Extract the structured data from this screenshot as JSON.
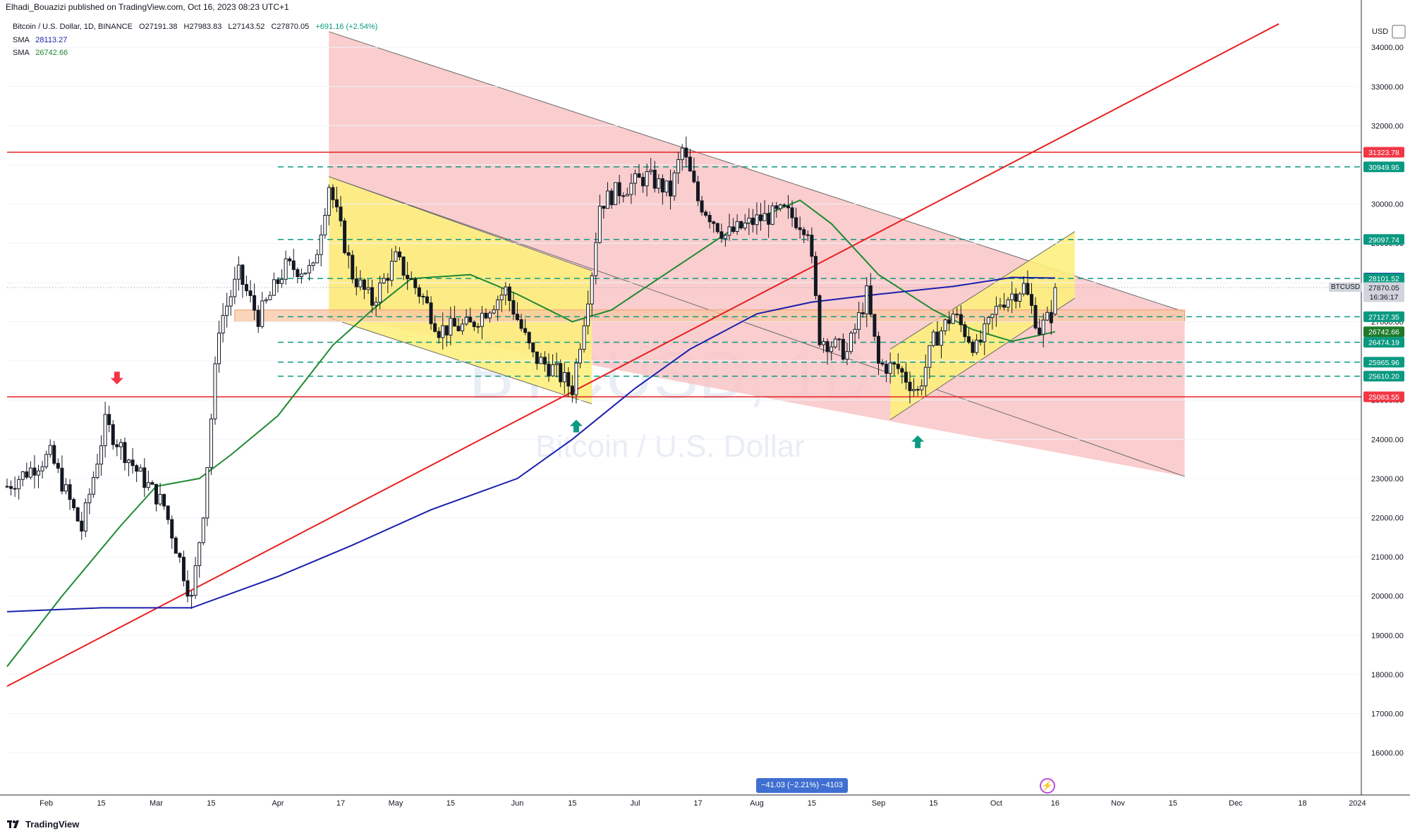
{
  "header": {
    "publisher": "Elhadi_Bouazizi published on TradingView.com, Oct 16, 2023 08:23 UTC+1"
  },
  "legend": {
    "symbol_line": "Bitcoin / U.S. Dollar, 1D, BINANCE",
    "o": "O27191.38",
    "h": "H27983.83",
    "l": "L27143.52",
    "c": "C27870.05",
    "chg": "+691.16 (+2.54%)",
    "sma1_label": "SMA",
    "sma1_value": "28113.27",
    "sma2_label": "SMA",
    "sma2_value": "26742.66"
  },
  "watermark": {
    "symbol": "BTCUSD, 1D",
    "name": "Bitcoin / U.S. Dollar"
  },
  "measure_label": "−41.03 (−2.21%) −4103",
  "symbol_tag": "BTCUSD",
  "branding": {
    "label": "TradingView"
  },
  "colors": {
    "up": "#131722",
    "down": "#131722",
    "sma_fast": "#1e8a32",
    "sma_slow": "#1b1fae",
    "red_line": "#e82020",
    "teal": "#0e9a82",
    "pink_zone": "#f9c4c6",
    "yellow_zone": "#fdf07e",
    "orange_box": "#f8c7a4"
  },
  "chart_data": {
    "type": "candlestick",
    "currency": "USD",
    "ylim": [
      15500,
      34500
    ],
    "y_ticks": [
      16000,
      17000,
      18000,
      19000,
      20000,
      21000,
      22000,
      23000,
      24000,
      25000,
      26000,
      27000,
      28000,
      29000,
      30000,
      31000,
      32000,
      33000,
      34000
    ],
    "x_range": [
      "2023-01-22",
      "2024-01-02"
    ],
    "x_ticks": [
      {
        "date": "2023-02-01",
        "label": "Feb"
      },
      {
        "date": "2023-02-15",
        "label": "15"
      },
      {
        "date": "2023-03-01",
        "label": "Mar"
      },
      {
        "date": "2023-03-15",
        "label": "15"
      },
      {
        "date": "2023-04-01",
        "label": "Apr"
      },
      {
        "date": "2023-04-17",
        "label": "17"
      },
      {
        "date": "2023-05-01",
        "label": "May"
      },
      {
        "date": "2023-05-15",
        "label": "15"
      },
      {
        "date": "2023-06-01",
        "label": "Jun"
      },
      {
        "date": "2023-06-15",
        "label": "15"
      },
      {
        "date": "2023-07-01",
        "label": "Jul"
      },
      {
        "date": "2023-07-17",
        "label": "17"
      },
      {
        "date": "2023-08-01",
        "label": "Aug"
      },
      {
        "date": "2023-08-15",
        "label": "15"
      },
      {
        "date": "2023-09-01",
        "label": "Sep"
      },
      {
        "date": "2023-09-15",
        "label": "15"
      },
      {
        "date": "2023-10-01",
        "label": "Oct"
      },
      {
        "date": "2023-10-16",
        "label": "16"
      },
      {
        "date": "2023-11-01",
        "label": "Nov"
      },
      {
        "date": "2023-11-15",
        "label": "15"
      },
      {
        "date": "2023-12-01",
        "label": "Dec"
      },
      {
        "date": "2023-12-18",
        "label": "18"
      },
      {
        "date": "2024-01-01",
        "label": "2024"
      }
    ],
    "price_path": [
      {
        "date": "2023-01-22",
        "value": 22800
      },
      {
        "date": "2023-02-02",
        "value": 23600
      },
      {
        "date": "2023-02-10",
        "value": 21700
      },
      {
        "date": "2023-02-16",
        "value": 24400
      },
      {
        "date": "2023-02-24",
        "value": 23200
      },
      {
        "date": "2023-03-03",
        "value": 22300
      },
      {
        "date": "2023-03-10",
        "value": 19900
      },
      {
        "date": "2023-03-13",
        "value": 22200
      },
      {
        "date": "2023-03-17",
        "value": 26900
      },
      {
        "date": "2023-03-22",
        "value": 28200
      },
      {
        "date": "2023-03-27",
        "value": 27100
      },
      {
        "date": "2023-04-03",
        "value": 28400
      },
      {
        "date": "2023-04-10",
        "value": 28300
      },
      {
        "date": "2023-04-14",
        "value": 30500
      },
      {
        "date": "2023-04-20",
        "value": 28200
      },
      {
        "date": "2023-04-25",
        "value": 27500
      },
      {
        "date": "2023-05-01",
        "value": 28600
      },
      {
        "date": "2023-05-08",
        "value": 27600
      },
      {
        "date": "2023-05-12",
        "value": 26800
      },
      {
        "date": "2023-05-20",
        "value": 26900
      },
      {
        "date": "2023-05-29",
        "value": 27800
      },
      {
        "date": "2023-06-05",
        "value": 26100
      },
      {
        "date": "2023-06-10",
        "value": 25800
      },
      {
        "date": "2023-06-15",
        "value": 25300
      },
      {
        "date": "2023-06-20",
        "value": 28300
      },
      {
        "date": "2023-06-22",
        "value": 30000
      },
      {
        "date": "2023-06-26",
        "value": 30300
      },
      {
        "date": "2023-07-04",
        "value": 30700
      },
      {
        "date": "2023-07-10",
        "value": 30300
      },
      {
        "date": "2023-07-13",
        "value": 31400
      },
      {
        "date": "2023-07-17",
        "value": 30100
      },
      {
        "date": "2023-07-24",
        "value": 29200
      },
      {
        "date": "2023-08-01",
        "value": 29600
      },
      {
        "date": "2023-08-08",
        "value": 29800
      },
      {
        "date": "2023-08-14",
        "value": 29400
      },
      {
        "date": "2023-08-17",
        "value": 26600
      },
      {
        "date": "2023-08-24",
        "value": 26200
      },
      {
        "date": "2023-08-29",
        "value": 27700
      },
      {
        "date": "2023-09-01",
        "value": 25900
      },
      {
        "date": "2023-09-06",
        "value": 25800
      },
      {
        "date": "2023-09-11",
        "value": 25200
      },
      {
        "date": "2023-09-15",
        "value": 26500
      },
      {
        "date": "2023-09-20",
        "value": 27200
      },
      {
        "date": "2023-09-26",
        "value": 26300
      },
      {
        "date": "2023-10-02",
        "value": 27500
      },
      {
        "date": "2023-10-08",
        "value": 27900
      },
      {
        "date": "2023-10-12",
        "value": 26800
      },
      {
        "date": "2023-10-15",
        "value": 27170
      },
      {
        "date": "2023-10-16",
        "value": 27870
      }
    ],
    "ohlc_last": {
      "date": "2023-10-16",
      "open": 27191.38,
      "high": 27983.83,
      "low": 27143.52,
      "close": 27870.05
    },
    "series": [
      {
        "name": "SMA",
        "color": "#1e8a32",
        "points": [
          {
            "date": "2023-01-22",
            "value": 18200
          },
          {
            "date": "2023-02-05",
            "value": 20000
          },
          {
            "date": "2023-02-20",
            "value": 21800
          },
          {
            "date": "2023-03-01",
            "value": 22800
          },
          {
            "date": "2023-03-12",
            "value": 23000
          },
          {
            "date": "2023-03-20",
            "value": 23600
          },
          {
            "date": "2023-04-01",
            "value": 24600
          },
          {
            "date": "2023-04-15",
            "value": 26400
          },
          {
            "date": "2023-04-25",
            "value": 27300
          },
          {
            "date": "2023-05-05",
            "value": 28100
          },
          {
            "date": "2023-05-20",
            "value": 28200
          },
          {
            "date": "2023-06-01",
            "value": 27700
          },
          {
            "date": "2023-06-15",
            "value": 27000
          },
          {
            "date": "2023-06-25",
            "value": 27300
          },
          {
            "date": "2023-07-10",
            "value": 28300
          },
          {
            "date": "2023-07-25",
            "value": 29300
          },
          {
            "date": "2023-08-05",
            "value": 29800
          },
          {
            "date": "2023-08-12",
            "value": 30100
          },
          {
            "date": "2023-08-20",
            "value": 29500
          },
          {
            "date": "2023-09-01",
            "value": 28200
          },
          {
            "date": "2023-09-15",
            "value": 27300
          },
          {
            "date": "2023-09-25",
            "value": 26800
          },
          {
            "date": "2023-10-05",
            "value": 26500
          },
          {
            "date": "2023-10-16",
            "value": 26742.66
          }
        ]
      },
      {
        "name": "SMA",
        "color": "#1b1fae",
        "points": [
          {
            "date": "2023-01-22",
            "value": 19600
          },
          {
            "date": "2023-02-15",
            "value": 19700
          },
          {
            "date": "2023-03-10",
            "value": 19700
          },
          {
            "date": "2023-04-01",
            "value": 20500
          },
          {
            "date": "2023-04-20",
            "value": 21300
          },
          {
            "date": "2023-05-10",
            "value": 22200
          },
          {
            "date": "2023-06-01",
            "value": 23000
          },
          {
            "date": "2023-06-15",
            "value": 24000
          },
          {
            "date": "2023-07-01",
            "value": 25300
          },
          {
            "date": "2023-07-15",
            "value": 26300
          },
          {
            "date": "2023-08-01",
            "value": 27200
          },
          {
            "date": "2023-08-15",
            "value": 27500
          },
          {
            "date": "2023-09-01",
            "value": 27700
          },
          {
            "date": "2023-09-20",
            "value": 27900
          },
          {
            "date": "2023-10-05",
            "value": 28130
          },
          {
            "date": "2023-10-16",
            "value": 28113.27
          }
        ]
      }
    ],
    "horizontal_levels": [
      {
        "price": 31323.78,
        "label": "31323.78",
        "style": "solid-red"
      },
      {
        "price": 30949.95,
        "label": "30949.95",
        "style": "dashed-teal"
      },
      {
        "price": 29097.74,
        "label": "29097.74",
        "style": "dashed-teal"
      },
      {
        "price": 28113.27,
        "label": "28113.27",
        "style": "sma-slow"
      },
      {
        "price": 28101.52,
        "label": "28101.52",
        "style": "dashed-teal"
      },
      {
        "price": 27870.05,
        "label": "27870.05",
        "style": "price"
      },
      {
        "price": 27127.35,
        "label": "27127.35",
        "style": "dashed-teal"
      },
      {
        "price": 26742.66,
        "label": "26742.66",
        "style": "sma-fast"
      },
      {
        "price": 26474.19,
        "label": "26474.19",
        "style": "dashed-teal"
      },
      {
        "price": 25965.96,
        "label": "25965.96",
        "style": "dashed-teal"
      },
      {
        "price": 25610.2,
        "label": "25610.20",
        "style": "dashed-teal"
      },
      {
        "price": 25083.55,
        "label": "25083.55",
        "style": "solid-red"
      }
    ],
    "countdown": "16:36:17",
    "trendline": {
      "from": {
        "date": "2023-01-22",
        "value": 17700
      },
      "to": {
        "date": "2023-12-12",
        "value": 34600
      }
    },
    "descending_channel": {
      "upper": [
        {
          "date": "2023-04-14",
          "value": 34400
        },
        {
          "date": "2023-11-18",
          "value": 27250
        }
      ],
      "lower_right": {
        "date": "2023-11-18",
        "value": 23050
      },
      "lower_left": {
        "date": "2023-04-14",
        "value": 27150
      }
    },
    "yellow_channel_1": {
      "poly": [
        {
          "date": "2023-04-14",
          "value": 30700
        },
        {
          "date": "2023-06-20",
          "value": 28300
        },
        {
          "date": "2023-06-20",
          "value": 24900
        },
        {
          "date": "2023-04-14",
          "value": 27100
        }
      ]
    },
    "yellow_channel_2": {
      "poly": [
        {
          "date": "2023-09-04",
          "value": 26300
        },
        {
          "date": "2023-10-21",
          "value": 29300
        },
        {
          "date": "2023-10-21",
          "value": 27600
        },
        {
          "date": "2023-09-04",
          "value": 24500
        }
      ]
    },
    "orange_box": {
      "from": "2023-03-21",
      "to": "2023-11-18",
      "top": 27300,
      "bottom": 27000
    },
    "arrows": [
      {
        "date": "2023-02-19",
        "value": 25400,
        "dir": "down"
      },
      {
        "date": "2023-06-16",
        "value": 24500,
        "dir": "up"
      },
      {
        "date": "2023-09-11",
        "value": 24100,
        "dir": "up"
      }
    ]
  }
}
